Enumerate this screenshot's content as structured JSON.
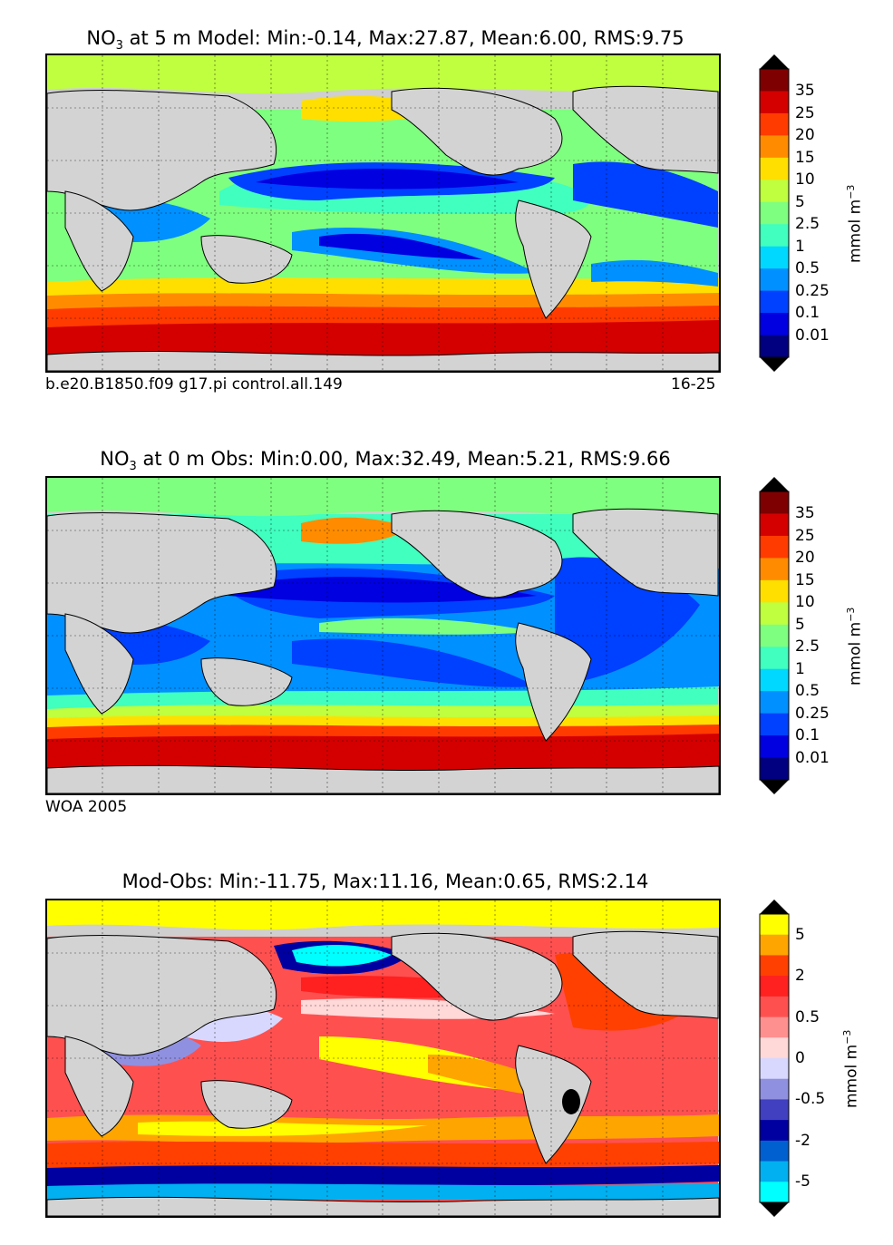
{
  "panels": [
    {
      "title_main": "NO",
      "title_sub": "3",
      "title_rest": " at 5 m Model: Min:-0.14, Max:27.87, Mean:6.00, RMS:9.75",
      "footer_left": "b.e20.B1850.f09 g17.pi control.all.149",
      "footer_right": "16-25",
      "colorbar": {
        "ticks": [
          "35",
          "25",
          "20",
          "15",
          "10",
          "5",
          "2.5",
          "1",
          "0.5",
          "0.25",
          "0.1",
          "0.01"
        ],
        "colors": [
          "#7f0000",
          "#d40000",
          "#ff3b00",
          "#ff8c00",
          "#ffdf00",
          "#bfff3f",
          "#7fff7f",
          "#40ffbf",
          "#00d8ff",
          "#0090ff",
          "#0040ff",
          "#0000e0",
          "#000080"
        ],
        "unit": "mmol m",
        "unit_sup": "−3"
      },
      "chart_data": {
        "type": "heatmap",
        "title": "NO3 at 5 m Model: Min:-0.14, Max:27.87, Mean:6.00, RMS:9.75",
        "variable": "NO3",
        "depth": "5 m",
        "source": "Model",
        "stats": {
          "min": -0.14,
          "max": 27.87,
          "mean": 6.0,
          "rms": 9.75
        },
        "colorbar_levels": [
          0.01,
          0.1,
          0.25,
          0.5,
          1,
          2.5,
          5,
          10,
          15,
          20,
          25,
          35
        ],
        "unit": "mmol m^-3"
      }
    },
    {
      "title_main": "NO",
      "title_sub": "3",
      "title_rest": " at 0 m Obs: Min:0.00, Max:32.49, Mean:5.21, RMS:9.66",
      "footer_left": "WOA 2005",
      "footer_right": "",
      "colorbar": {
        "ticks": [
          "35",
          "25",
          "20",
          "15",
          "10",
          "5",
          "2.5",
          "1",
          "0.5",
          "0.25",
          "0.1",
          "0.01"
        ],
        "colors": [
          "#7f0000",
          "#d40000",
          "#ff3b00",
          "#ff8c00",
          "#ffdf00",
          "#bfff3f",
          "#7fff7f",
          "#40ffbf",
          "#00d8ff",
          "#0090ff",
          "#0040ff",
          "#0000e0",
          "#000080"
        ],
        "unit": "mmol m",
        "unit_sup": "−3"
      },
      "chart_data": {
        "type": "heatmap",
        "title": "NO3 at 0 m Obs: Min:0.00, Max:32.49, Mean:5.21, RMS:9.66",
        "variable": "NO3",
        "depth": "0 m",
        "source": "Obs",
        "stats": {
          "min": 0.0,
          "max": 32.49,
          "mean": 5.21,
          "rms": 9.66
        },
        "colorbar_levels": [
          0.01,
          0.1,
          0.25,
          0.5,
          1,
          2.5,
          5,
          10,
          15,
          20,
          25,
          35
        ],
        "unit": "mmol m^-3"
      }
    },
    {
      "title_main": "Mod-Obs: Min:-11.75, Max:11.16, Mean:0.65, RMS:2.14",
      "title_sub": "",
      "title_rest": "",
      "footer_left": "",
      "footer_right": "",
      "colorbar": {
        "ticks": [
          "5",
          "",
          "2",
          "",
          "0.5",
          "",
          "0",
          "",
          "-0.5",
          "",
          "-2",
          "",
          "-5"
        ],
        "colors": [
          "#ffff00",
          "#ffa500",
          "#ff4000",
          "#ff2020",
          "#ff5050",
          "#ff9090",
          "#ffd8d8",
          "#d8d8ff",
          "#9090e0",
          "#4040c0",
          "#0000a0",
          "#0060d0",
          "#00b0f0",
          "#00ffff"
        ],
        "unit": "mmol m",
        "unit_sup": "−3"
      },
      "chart_data": {
        "type": "heatmap",
        "title": "Mod-Obs: Min:-11.75, Max:11.16, Mean:0.65, RMS:2.14",
        "source": "Mod-Obs",
        "stats": {
          "min": -11.75,
          "max": 11.16,
          "mean": 0.65,
          "rms": 2.14
        },
        "colorbar_tick_labels": [
          5,
          2,
          0.5,
          0,
          -0.5,
          -2,
          -5
        ],
        "unit": "mmol m^-3"
      }
    }
  ]
}
